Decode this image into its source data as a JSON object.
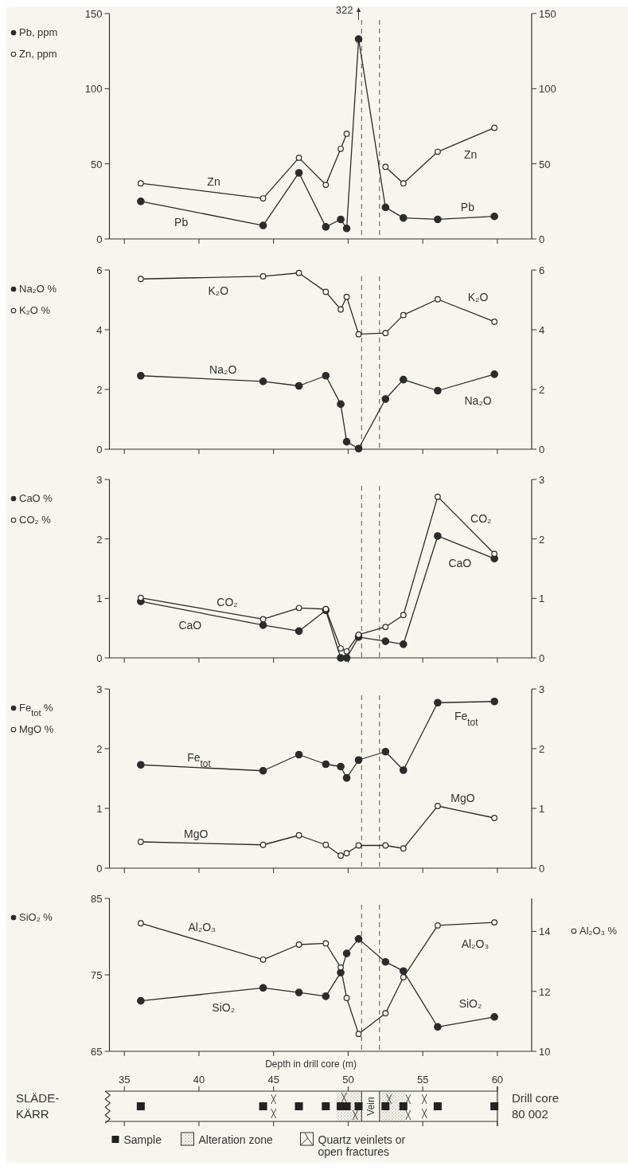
{
  "chart_data": [
    {
      "type": "line",
      "x": [
        36.1,
        44.3,
        46.7,
        48.5,
        49.5,
        49.9,
        50.7,
        52.5,
        53.7,
        56.0,
        59.8
      ],
      "xlim": [
        34,
        62.3
      ],
      "xticks": [
        {
          "value": 35,
          "label": null
        },
        {
          "value": 40,
          "label": null
        },
        {
          "value": 45,
          "label": null
        },
        {
          "value": 50,
          "label": null
        },
        {
          "value": 55,
          "label": null
        },
        {
          "value": 60,
          "label": null
        }
      ],
      "ylim": [
        0,
        150
      ],
      "yticks": [
        0,
        50,
        100,
        150
      ],
      "y2lim": [
        0,
        150
      ],
      "y2ticks": [
        0,
        50,
        100,
        150
      ],
      "tick_labels": "y",
      "marker": "circle",
      "legend": "left",
      "series": [
        {
          "name": "Pb, ppm",
          "color": "#2b2b2b",
          "values": [
            25,
            9,
            44,
            8,
            13,
            7,
            133,
            21,
            14,
            13,
            15
          ]
        },
        {
          "name": "Zn, ppm",
          "color": "#2b2b2b",
          "values": [
            37,
            27,
            54,
            36,
            60,
            70,
            null,
            48,
            37,
            58,
            74
          ]
        }
      ],
      "ref_lines": [
        {
          "axis": "x",
          "value": 50.9,
          "line_style": "dashed"
        },
        {
          "axis": "x",
          "value": 52.1,
          "line_style": "dashed"
        }
      ],
      "annotations": [
        "322",
        "Zn",
        "Pb",
        "Zn",
        "Pb"
      ]
    },
    {
      "type": "line",
      "x": [
        36.1,
        44.3,
        46.7,
        48.5,
        49.5,
        49.9,
        50.7,
        52.5,
        53.7,
        56.0,
        59.8
      ],
      "xlim": [
        34,
        62.3
      ],
      "xticks": [
        {
          "value": 35,
          "label": null
        },
        {
          "value": 40,
          "label": null
        },
        {
          "value": 45,
          "label": null
        },
        {
          "value": 50,
          "label": null
        },
        {
          "value": 55,
          "label": null
        },
        {
          "value": 60,
          "label": null
        }
      ],
      "ylim": [
        0,
        6
      ],
      "yticks": [
        0,
        2,
        4,
        6
      ],
      "y2lim": [
        0,
        6
      ],
      "y2ticks": [
        0,
        2,
        4,
        6
      ],
      "tick_labels": "y",
      "marker": "circle",
      "legend": "left",
      "series": [
        {
          "name": "Na₂O %",
          "color": "#2b2b2b",
          "values": [
            2.46,
            2.27,
            2.12,
            2.46,
            1.51,
            0.25,
            0.02,
            1.68,
            2.33,
            1.96,
            2.51
          ]
        },
        {
          "name": "K₂O %",
          "color": "#2b2b2b",
          "values": [
            5.7,
            5.79,
            5.9,
            5.27,
            4.68,
            5.1,
            3.85,
            3.89,
            4.49,
            5.02,
            4.27
          ]
        }
      ],
      "ref_lines": [
        {
          "axis": "x",
          "value": 50.9,
          "line_style": "dashed"
        },
        {
          "axis": "x",
          "value": 52.1,
          "line_style": "dashed"
        }
      ],
      "annotations": [
        "K₂O",
        "Na₂O",
        "K₂O",
        "Na₂O"
      ]
    },
    {
      "type": "line",
      "x": [
        36.1,
        44.3,
        46.7,
        48.5,
        49.5,
        49.9,
        50.7,
        52.5,
        53.7,
        56.0,
        59.8
      ],
      "xlim": [
        34,
        62.3
      ],
      "xticks": [
        {
          "value": 35,
          "label": null
        },
        {
          "value": 40,
          "label": null
        },
        {
          "value": 45,
          "label": null
        },
        {
          "value": 50,
          "label": null
        },
        {
          "value": 55,
          "label": null
        },
        {
          "value": 60,
          "label": null
        }
      ],
      "ylim": [
        0,
        3
      ],
      "yticks": [
        0,
        1,
        2,
        3
      ],
      "y2lim": [
        0,
        3
      ],
      "y2ticks": [
        0,
        1,
        2,
        3
      ],
      "tick_labels": "y",
      "marker": "circle",
      "legend": "left",
      "series": [
        {
          "name": "CaO %",
          "color": "#2b2b2b",
          "values": [
            0.95,
            0.55,
            0.45,
            0.8,
            0,
            0,
            0.35,
            0.28,
            0.23,
            2.05,
            1.67
          ]
        },
        {
          "name": "CO₂ %",
          "color": "#2b2b2b",
          "values": [
            1.01,
            0.65,
            0.84,
            0.82,
            0.16,
            0.11,
            0.39,
            0.52,
            0.72,
            2.71,
            1.75
          ]
        }
      ],
      "ref_lines": [
        {
          "axis": "x",
          "value": 50.9,
          "line_style": "dashed"
        },
        {
          "axis": "x",
          "value": 52.1,
          "line_style": "dashed"
        }
      ],
      "annotations": [
        "CO₂",
        "CaO",
        "CO₂",
        "CaO"
      ]
    },
    {
      "type": "line",
      "x": [
        36.1,
        44.3,
        46.7,
        48.5,
        49.5,
        49.9,
        50.7,
        52.5,
        53.7,
        56.0,
        59.8
      ],
      "xlim": [
        34,
        62.3
      ],
      "xticks": [
        {
          "value": 35,
          "label": null
        },
        {
          "value": 40,
          "label": null
        },
        {
          "value": 45,
          "label": null
        },
        {
          "value": 50,
          "label": null
        },
        {
          "value": 55,
          "label": null
        },
        {
          "value": 60,
          "label": null
        }
      ],
      "ylim": [
        0,
        3
      ],
      "yticks": [
        0,
        1,
        2,
        3
      ],
      "y2lim": [
        0,
        3
      ],
      "y2ticks": [
        0,
        1,
        2,
        3
      ],
      "tick_labels": "y",
      "marker": "circle",
      "legend": "left",
      "series": [
        {
          "name": "Fe$_{tot}$ %",
          "color": "#2b2b2b",
          "values": [
            1.73,
            1.63,
            1.9,
            1.74,
            1.7,
            1.51,
            1.81,
            1.95,
            1.64,
            2.77,
            2.79
          ]
        },
        {
          "name": "MgO %",
          "color": "#2b2b2b",
          "values": [
            0.44,
            0.39,
            0.55,
            0.39,
            0.21,
            0.25,
            0.38,
            0.38,
            0.33,
            1.04,
            0.84
          ]
        }
      ],
      "ref_lines": [
        {
          "axis": "x",
          "value": 50.9,
          "line_style": "dashed"
        },
        {
          "axis": "x",
          "value": 52.1,
          "line_style": "dashed"
        }
      ],
      "annotations": [
        "Fe$_{tot}$",
        "MgO",
        "Fe$_{tot}$",
        "MgO"
      ]
    },
    {
      "type": "line",
      "x": [
        36.1,
        44.3,
        46.7,
        48.5,
        49.5,
        49.9,
        50.7,
        52.5,
        53.7,
        56.0,
        59.8
      ],
      "xlim": [
        34,
        62.3
      ],
      "xticks": [
        35,
        40,
        45,
        50,
        55,
        60
      ],
      "xlabel": "Depth in drill core (m)",
      "ylim": [
        65,
        85
      ],
      "yticks": [
        65,
        75,
        85
      ],
      "y2lim": [
        10,
        15.1
      ],
      "y2ticks": [
        10,
        12,
        14
      ],
      "marker": "circle",
      "legend": "left",
      "series": [
        {
          "name": "SiO₂ %",
          "color": "#2b2b2b",
          "values": [
            71.6,
            73.3,
            72.7,
            72.2,
            75.3,
            77.8,
            79.7,
            76.7,
            75.5,
            68.2,
            69.5
          ]
        },
        {
          "name": "Al₂O₃ %",
          "color": "#2b2b2b",
          "axis": "y2",
          "values": [
            14.27,
            13.06,
            13.56,
            13.6,
            12.8,
            11.78,
            10.58,
            11.27,
            12.47,
            14.2,
            14.3
          ]
        }
      ],
      "ref_lines": [
        {
          "axis": "x",
          "value": 50.9,
          "line_style": "dashed"
        },
        {
          "axis": "x",
          "value": 52.1,
          "line_style": "dashed"
        }
      ],
      "annotations": [
        "Al₂O₃",
        "SiO₂",
        "Al₂O₃",
        "SiO₂",
        "SLÄDE-\nKÄRR",
        "Drill core\n80 002",
        "Vein",
        "Sample",
        "Alteration zone",
        "Quartz veinlets or\nopen fractures"
      ]
    }
  ]
}
